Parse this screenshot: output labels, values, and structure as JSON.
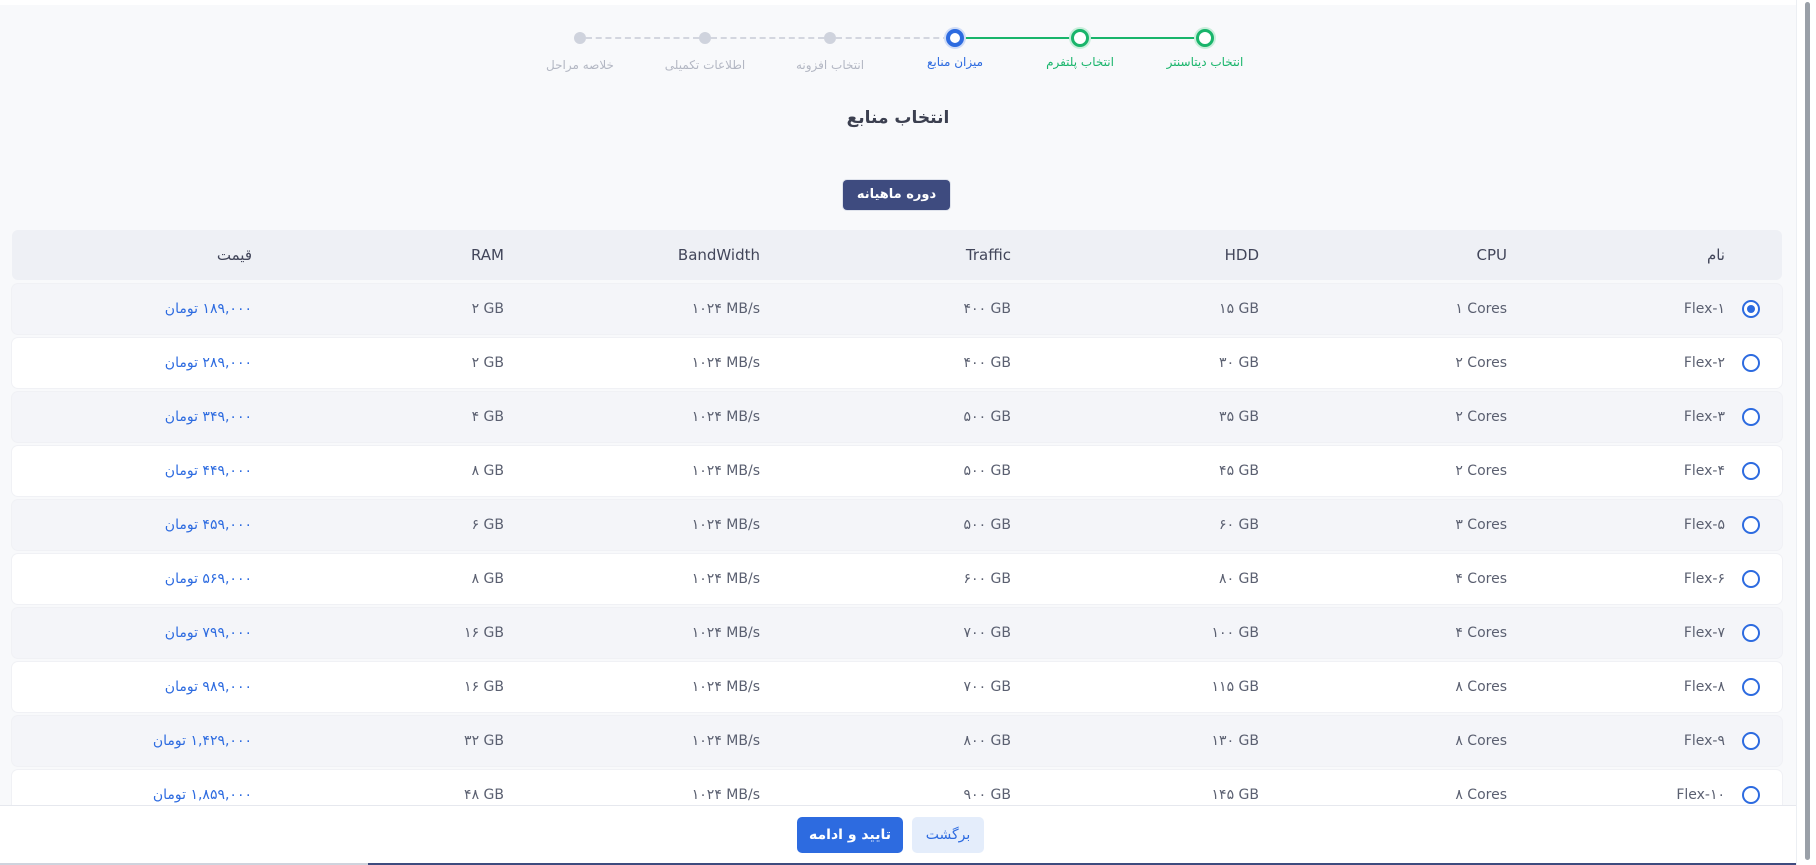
{
  "stepper": {
    "steps": [
      {
        "label": "انتخاب دیتاسنتر",
        "state": "done"
      },
      {
        "label": "انتخاب پلتفرم",
        "state": "done"
      },
      {
        "label": "میزان منابع",
        "state": "current"
      },
      {
        "label": "انتخاب افزونه",
        "state": "todo"
      },
      {
        "label": "اطلاعات تکمیلی",
        "state": "todo"
      },
      {
        "label": "خلاصه مراحل",
        "state": "todo"
      }
    ]
  },
  "page": {
    "title": "انتخاب منابع",
    "period_label": "دوره ماهیانه"
  },
  "table": {
    "headers": {
      "name": "نام",
      "cpu": "CPU",
      "hdd": "HDD",
      "traffic": "Traffic",
      "bandwidth": "BandWidth",
      "ram": "RAM",
      "price": "قیمت"
    },
    "rows": [
      {
        "selected": true,
        "name": "Flex-۱",
        "cpu": "۱ Cores",
        "hdd": "۱۵ GB",
        "traffic": "۴۰۰ GB",
        "bandwidth": "۱۰۲۴ MB/s",
        "ram": "۲ GB",
        "price": "۱۸۹,۰۰۰ تومان"
      },
      {
        "selected": false,
        "name": "Flex-۲",
        "cpu": "۲ Cores",
        "hdd": "۳۰ GB",
        "traffic": "۴۰۰ GB",
        "bandwidth": "۱۰۲۴ MB/s",
        "ram": "۲ GB",
        "price": "۲۸۹,۰۰۰ تومان"
      },
      {
        "selected": false,
        "name": "Flex-۳",
        "cpu": "۲ Cores",
        "hdd": "۳۵ GB",
        "traffic": "۵۰۰ GB",
        "bandwidth": "۱۰۲۴ MB/s",
        "ram": "۴ GB",
        "price": "۳۴۹,۰۰۰ تومان"
      },
      {
        "selected": false,
        "name": "Flex-۴",
        "cpu": "۲ Cores",
        "hdd": "۴۵ GB",
        "traffic": "۵۰۰ GB",
        "bandwidth": "۱۰۲۴ MB/s",
        "ram": "۸ GB",
        "price": "۴۴۹,۰۰۰ تومان"
      },
      {
        "selected": false,
        "name": "Flex-۵",
        "cpu": "۳ Cores",
        "hdd": "۶۰ GB",
        "traffic": "۵۰۰ GB",
        "bandwidth": "۱۰۲۴ MB/s",
        "ram": "۶ GB",
        "price": "۴۵۹,۰۰۰ تومان"
      },
      {
        "selected": false,
        "name": "Flex-۶",
        "cpu": "۴ Cores",
        "hdd": "۸۰ GB",
        "traffic": "۶۰۰ GB",
        "bandwidth": "۱۰۲۴ MB/s",
        "ram": "۸ GB",
        "price": "۵۶۹,۰۰۰ تومان"
      },
      {
        "selected": false,
        "name": "Flex-۷",
        "cpu": "۴ Cores",
        "hdd": "۱۰۰ GB",
        "traffic": "۷۰۰ GB",
        "bandwidth": "۱۰۲۴ MB/s",
        "ram": "۱۶ GB",
        "price": "۷۹۹,۰۰۰ تومان"
      },
      {
        "selected": false,
        "name": "Flex-۸",
        "cpu": "۸ Cores",
        "hdd": "۱۱۵ GB",
        "traffic": "۷۰۰ GB",
        "bandwidth": "۱۰۲۴ MB/s",
        "ram": "۱۶ GB",
        "price": "۹۸۹,۰۰۰ تومان"
      },
      {
        "selected": false,
        "name": "Flex-۹",
        "cpu": "۸ Cores",
        "hdd": "۱۳۰ GB",
        "traffic": "۸۰۰ GB",
        "bandwidth": "۱۰۲۴ MB/s",
        "ram": "۳۲ GB",
        "price": "۱,۴۲۹,۰۰۰ تومان"
      },
      {
        "selected": false,
        "name": "Flex-۱۰",
        "cpu": "۸ Cores",
        "hdd": "۱۴۵ GB",
        "traffic": "۹۰۰ GB",
        "bandwidth": "۱۰۲۴ MB/s",
        "ram": "۴۸ GB",
        "price": "۱,۸۵۹,۰۰۰ تومان"
      }
    ]
  },
  "footer": {
    "confirm_label": "تایید و ادامه",
    "back_label": "برگشت"
  },
  "colors": {
    "accent": "#2d6be0",
    "done": "#19b56b",
    "period_button": "#3e4b7f"
  }
}
